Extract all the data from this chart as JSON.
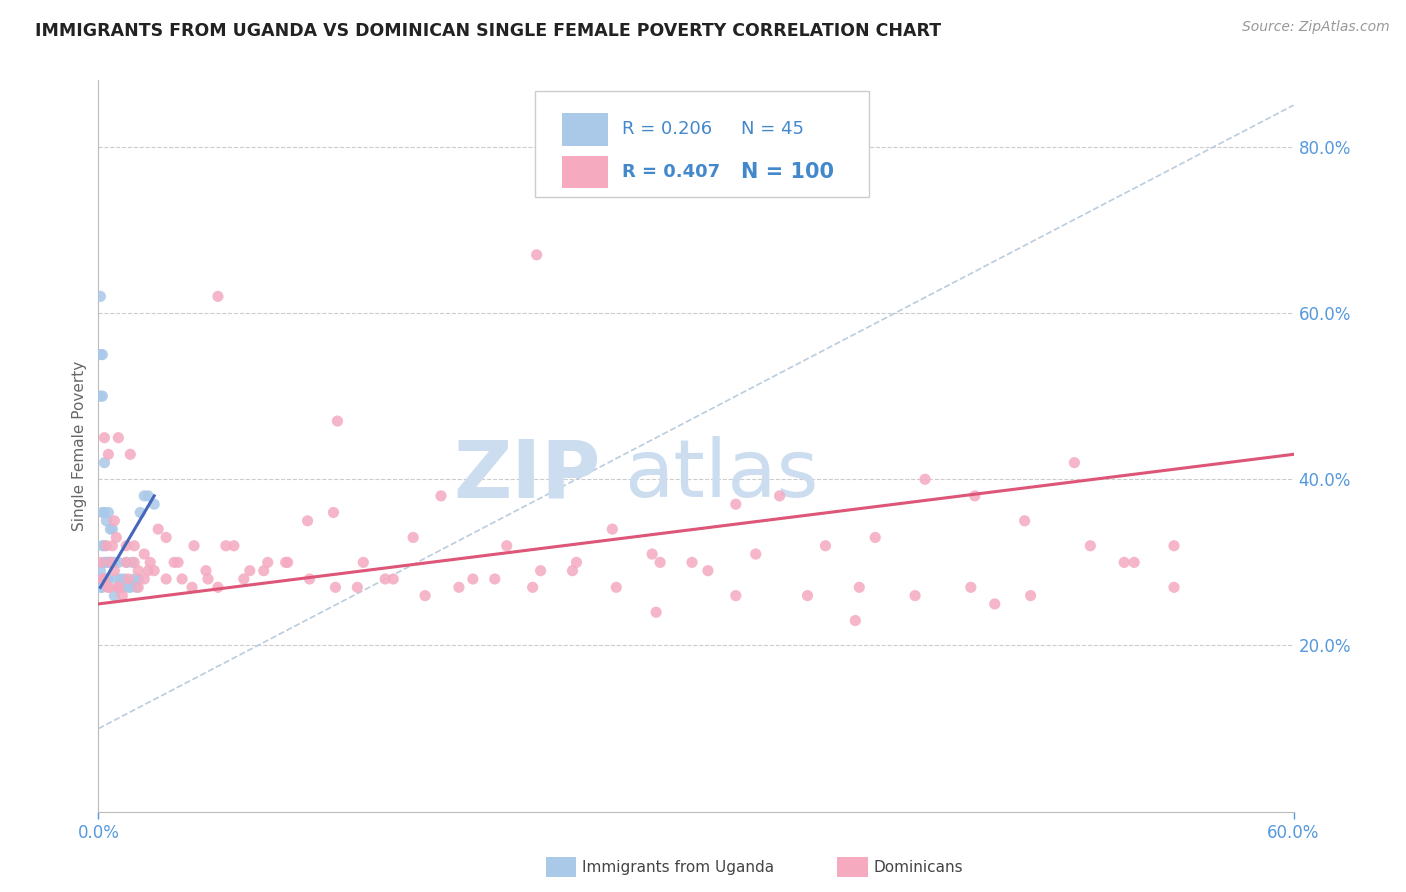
{
  "title": "IMMIGRANTS FROM UGANDA VS DOMINICAN SINGLE FEMALE POVERTY CORRELATION CHART",
  "source_text": "Source: ZipAtlas.com",
  "ylabel": "Single Female Poverty",
  "right_ytick_labels": [
    "20.0%",
    "40.0%",
    "60.0%",
    "80.0%"
  ],
  "right_ytick_values": [
    0.2,
    0.4,
    0.6,
    0.8
  ],
  "xlim": [
    0.0,
    0.6
  ],
  "ylim": [
    0.0,
    0.88
  ],
  "xtick_labels": [
    "0.0%",
    "60.0%"
  ],
  "xtick_values": [
    0.0,
    0.6
  ],
  "R_uganda": 0.206,
  "N_uganda": 45,
  "R_dominican": 0.407,
  "N_dominican": 100,
  "color_uganda": "#aac8e8",
  "color_dominican": "#f5aac0",
  "trendline_uganda": "#4466bb",
  "trendline_dominican": "#dd5577",
  "refline_color": "#bbccdd",
  "watermark_text": "ZIPAtlas",
  "watermark_color": "#ccddf0",
  "background_color": "#ffffff",
  "grid_color": "#cccccc",
  "title_color": "#222222",
  "axis_label_color": "#5599dd",
  "legend_text_color": "#4488cc",
  "legend_N_bold_color": "#4488cc",
  "uganda_x": [
    0.001,
    0.001,
    0.001,
    0.001,
    0.001,
    0.002,
    0.002,
    0.002,
    0.002,
    0.002,
    0.002,
    0.003,
    0.003,
    0.003,
    0.003,
    0.003,
    0.004,
    0.004,
    0.004,
    0.005,
    0.005,
    0.005,
    0.006,
    0.006,
    0.007,
    0.007,
    0.008,
    0.008,
    0.009,
    0.01,
    0.01,
    0.011,
    0.012,
    0.013,
    0.014,
    0.015,
    0.016,
    0.017,
    0.018,
    0.019,
    0.02,
    0.021,
    0.023,
    0.025,
    0.028
  ],
  "uganda_y": [
    0.27,
    0.29,
    0.5,
    0.55,
    0.62,
    0.27,
    0.28,
    0.32,
    0.36,
    0.5,
    0.55,
    0.28,
    0.3,
    0.32,
    0.36,
    0.42,
    0.28,
    0.3,
    0.35,
    0.28,
    0.3,
    0.36,
    0.3,
    0.34,
    0.3,
    0.34,
    0.26,
    0.3,
    0.28,
    0.27,
    0.3,
    0.28,
    0.27,
    0.28,
    0.3,
    0.27,
    0.27,
    0.3,
    0.28,
    0.27,
    0.28,
    0.36,
    0.38,
    0.38,
    0.37
  ],
  "dominican_x": [
    0.001,
    0.002,
    0.003,
    0.004,
    0.005,
    0.006,
    0.007,
    0.008,
    0.009,
    0.01,
    0.012,
    0.014,
    0.016,
    0.018,
    0.02,
    0.023,
    0.026,
    0.03,
    0.034,
    0.038,
    0.042,
    0.048,
    0.054,
    0.06,
    0.068,
    0.076,
    0.085,
    0.095,
    0.105,
    0.118,
    0.13,
    0.144,
    0.158,
    0.172,
    0.188,
    0.205,
    0.222,
    0.24,
    0.258,
    0.278,
    0.298,
    0.32,
    0.342,
    0.365,
    0.39,
    0.415,
    0.44,
    0.465,
    0.49,
    0.515,
    0.003,
    0.005,
    0.008,
    0.01,
    0.014,
    0.018,
    0.023,
    0.028,
    0.034,
    0.04,
    0.047,
    0.055,
    0.064,
    0.073,
    0.083,
    0.094,
    0.106,
    0.119,
    0.133,
    0.148,
    0.164,
    0.181,
    0.199,
    0.218,
    0.238,
    0.26,
    0.282,
    0.306,
    0.33,
    0.356,
    0.382,
    0.41,
    0.438,
    0.468,
    0.498,
    0.52,
    0.54,
    0.005,
    0.01,
    0.015,
    0.02,
    0.025,
    0.06,
    0.12,
    0.22,
    0.28,
    0.32,
    0.38,
    0.45,
    0.54
  ],
  "dominican_y": [
    0.3,
    0.28,
    0.45,
    0.32,
    0.43,
    0.3,
    0.32,
    0.35,
    0.33,
    0.27,
    0.26,
    0.3,
    0.43,
    0.32,
    0.29,
    0.31,
    0.3,
    0.34,
    0.33,
    0.3,
    0.28,
    0.32,
    0.29,
    0.27,
    0.32,
    0.29,
    0.3,
    0.3,
    0.35,
    0.36,
    0.27,
    0.28,
    0.33,
    0.38,
    0.28,
    0.32,
    0.29,
    0.3,
    0.34,
    0.31,
    0.3,
    0.37,
    0.38,
    0.32,
    0.33,
    0.4,
    0.38,
    0.35,
    0.42,
    0.3,
    0.28,
    0.27,
    0.29,
    0.27,
    0.32,
    0.3,
    0.28,
    0.29,
    0.28,
    0.3,
    0.27,
    0.28,
    0.32,
    0.28,
    0.29,
    0.3,
    0.28,
    0.27,
    0.3,
    0.28,
    0.26,
    0.27,
    0.28,
    0.27,
    0.29,
    0.27,
    0.3,
    0.29,
    0.31,
    0.26,
    0.27,
    0.26,
    0.27,
    0.26,
    0.32,
    0.3,
    0.27,
    0.27,
    0.45,
    0.28,
    0.27,
    0.29,
    0.62,
    0.47,
    0.67,
    0.24,
    0.26,
    0.23,
    0.25,
    0.32
  ],
  "uganda_trend_x": [
    0.001,
    0.028
  ],
  "uganda_trend_y": [
    0.27,
    0.38
  ],
  "dominican_trend_x": [
    0.0,
    0.6
  ],
  "dominican_trend_y": [
    0.25,
    0.43
  ],
  "refline_x": [
    0.0,
    0.6
  ],
  "refline_y": [
    0.1,
    0.85
  ]
}
